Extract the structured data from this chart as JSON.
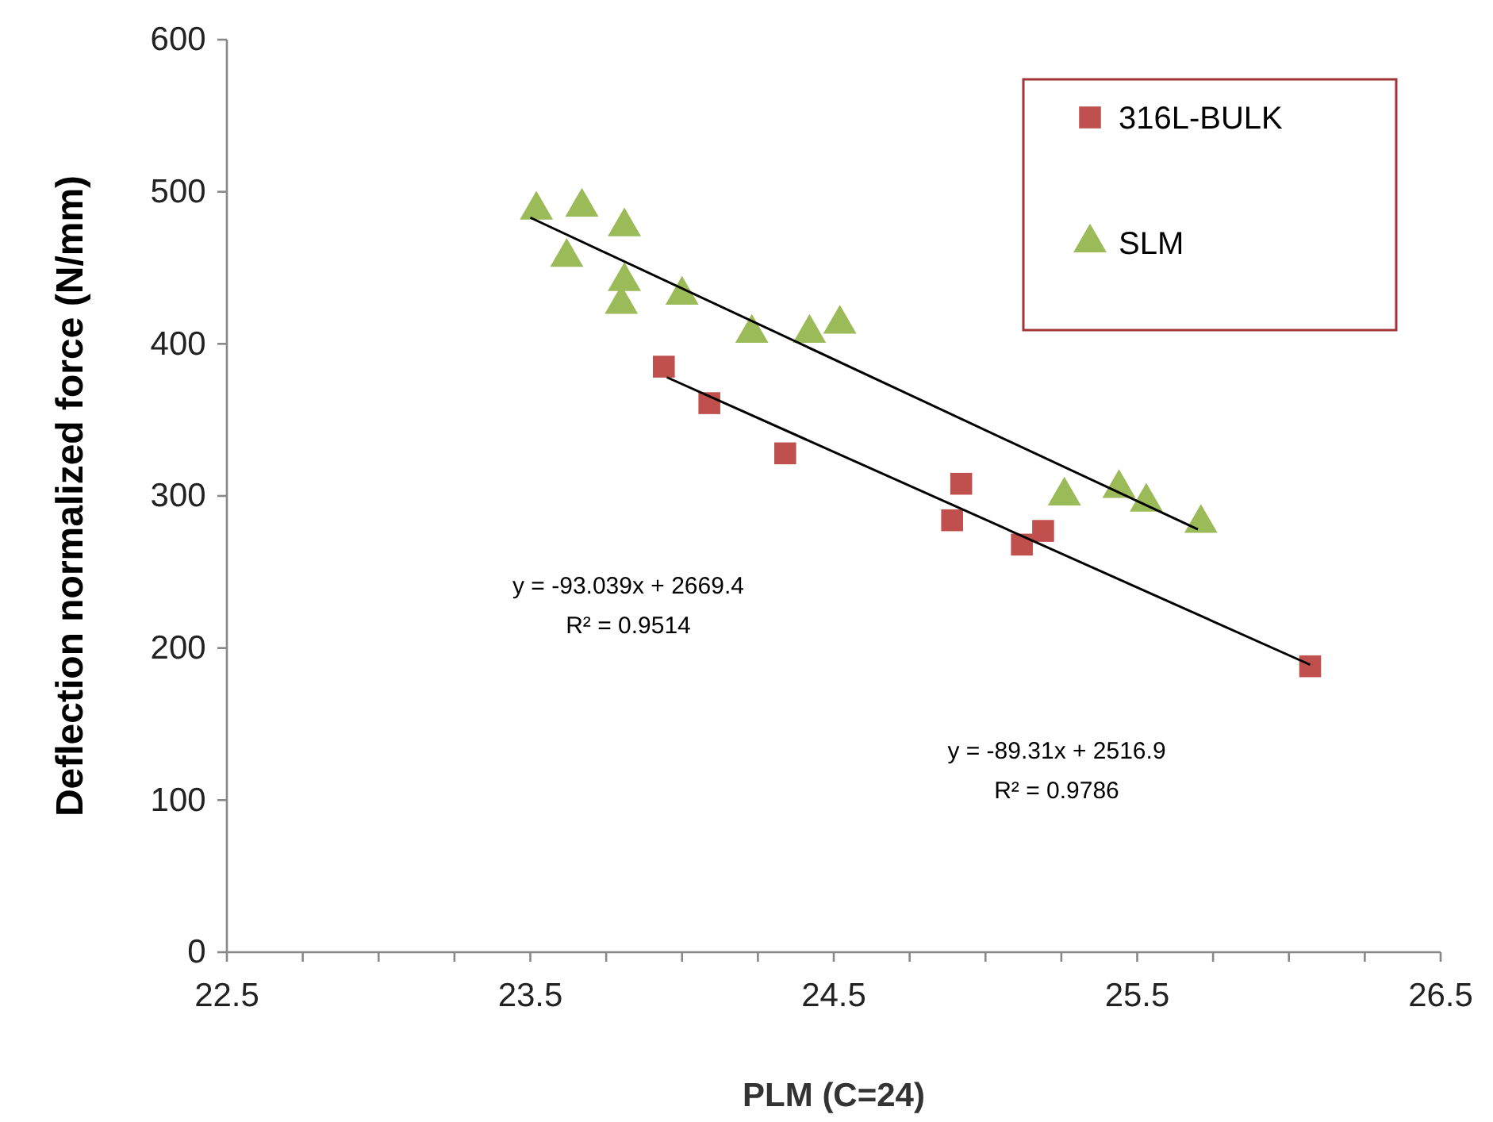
{
  "chart_data": {
    "type": "scatter",
    "xlabel": "PLM (C=24)",
    "ylabel": "Deflection normalized force (N/mm)",
    "xlim": [
      22.5,
      26.5
    ],
    "ylim": [
      0,
      600
    ],
    "xticks": [
      22.5,
      {
        "value": 22.75,
        "label": null
      },
      {
        "value": 23,
        "label": null
      },
      {
        "value": 23.25,
        "label": null
      },
      23.5,
      {
        "value": 23.75,
        "label": null
      },
      {
        "value": 24,
        "label": null
      },
      {
        "value": 24.25,
        "label": null
      },
      24.5,
      {
        "value": 24.75,
        "label": null
      },
      {
        "value": 25,
        "label": null
      },
      {
        "value": 25.25,
        "label": null
      },
      25.5,
      {
        "value": 25.75,
        "label": null
      },
      {
        "value": 26,
        "label": null
      },
      {
        "value": 26.25,
        "label": null
      },
      26.5
    ],
    "yticks": [
      0,
      100,
      200,
      300,
      400,
      500,
      600
    ],
    "grid": false,
    "legend": "top right",
    "series": [
      {
        "name": "316L-BULK",
        "color": "#c0504d",
        "marker": "square",
        "x": [
          23.94,
          24.09,
          24.34,
          24.89,
          24.92,
          25.12,
          25.19,
          26.07
        ],
        "values": [
          385,
          361,
          328,
          284,
          308,
          268,
          277,
          188
        ]
      },
      {
        "name": "SLM",
        "color": "#9bbb59",
        "marker": "triangle",
        "x": [
          23.52,
          23.62,
          23.67,
          23.81,
          23.81,
          23.8,
          24.0,
          24.23,
          24.42,
          24.52,
          25.26,
          25.44,
          25.53,
          25.71
        ],
        "values": [
          488,
          457,
          490,
          477,
          441,
          426,
          432,
          407,
          407,
          413,
          300,
          305,
          296,
          282
        ]
      },
      {
        "type": "line",
        "color": "#000000",
        "marker": "none",
        "x": [
          23.5,
          25.7
        ],
        "values": [
          483,
          278
        ]
      },
      {
        "type": "line",
        "color": "#000000",
        "marker": "none",
        "x": [
          23.95,
          26.07
        ],
        "values": [
          378,
          189
        ]
      }
    ],
    "annotations": [
      "y = -93.039x + 2669.4",
      "R² = 0.9514",
      "y = -89.31x + 2516.9",
      "R² = 0.9786"
    ]
  }
}
